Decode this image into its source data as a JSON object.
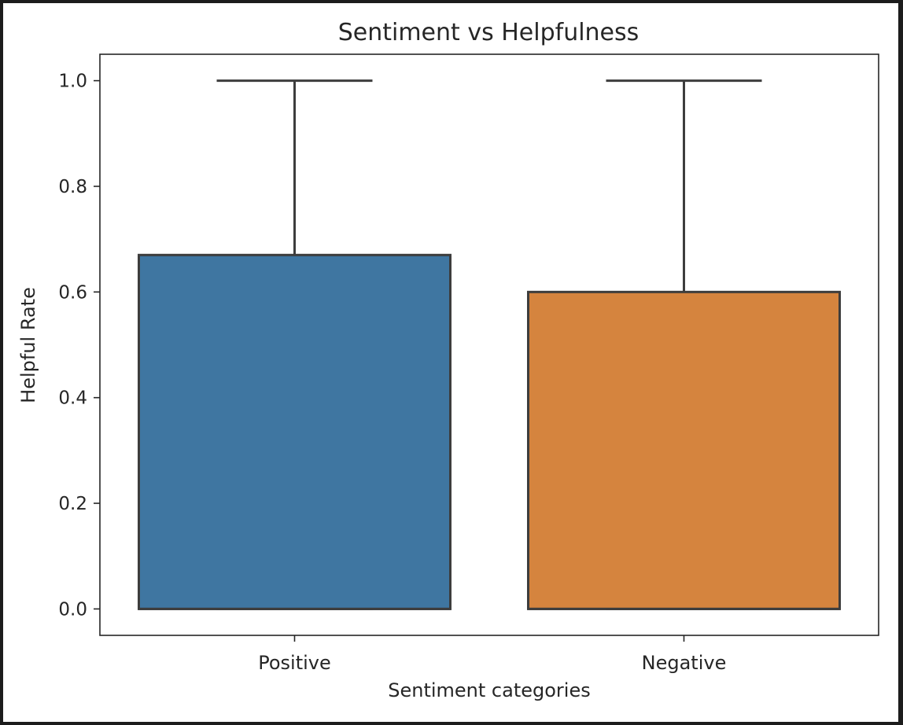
{
  "chart_data": {
    "type": "box",
    "title": "Sentiment vs Helpfulness",
    "xlabel": "Sentiment categories",
    "ylabel": "Helpful Rate",
    "categories": [
      "Positive",
      "Negative"
    ],
    "boxes": [
      {
        "category": "Positive",
        "min": 0.0,
        "q1": 0.0,
        "median": 0.0,
        "q3": 0.67,
        "max": 1.0,
        "color": "#3f76a1"
      },
      {
        "category": "Negative",
        "min": 0.0,
        "q1": 0.0,
        "median": 0.0,
        "q3": 0.6,
        "max": 1.0,
        "color": "#d5843e"
      }
    ],
    "ylim": [
      -0.05,
      1.05
    ],
    "yticks": [
      0.0,
      0.2,
      0.4,
      0.6,
      0.8,
      1.0
    ],
    "ytick_labels": [
      "0.0",
      "0.2",
      "0.4",
      "0.6",
      "0.8",
      "1.0"
    ],
    "grid": false,
    "legend": false
  }
}
